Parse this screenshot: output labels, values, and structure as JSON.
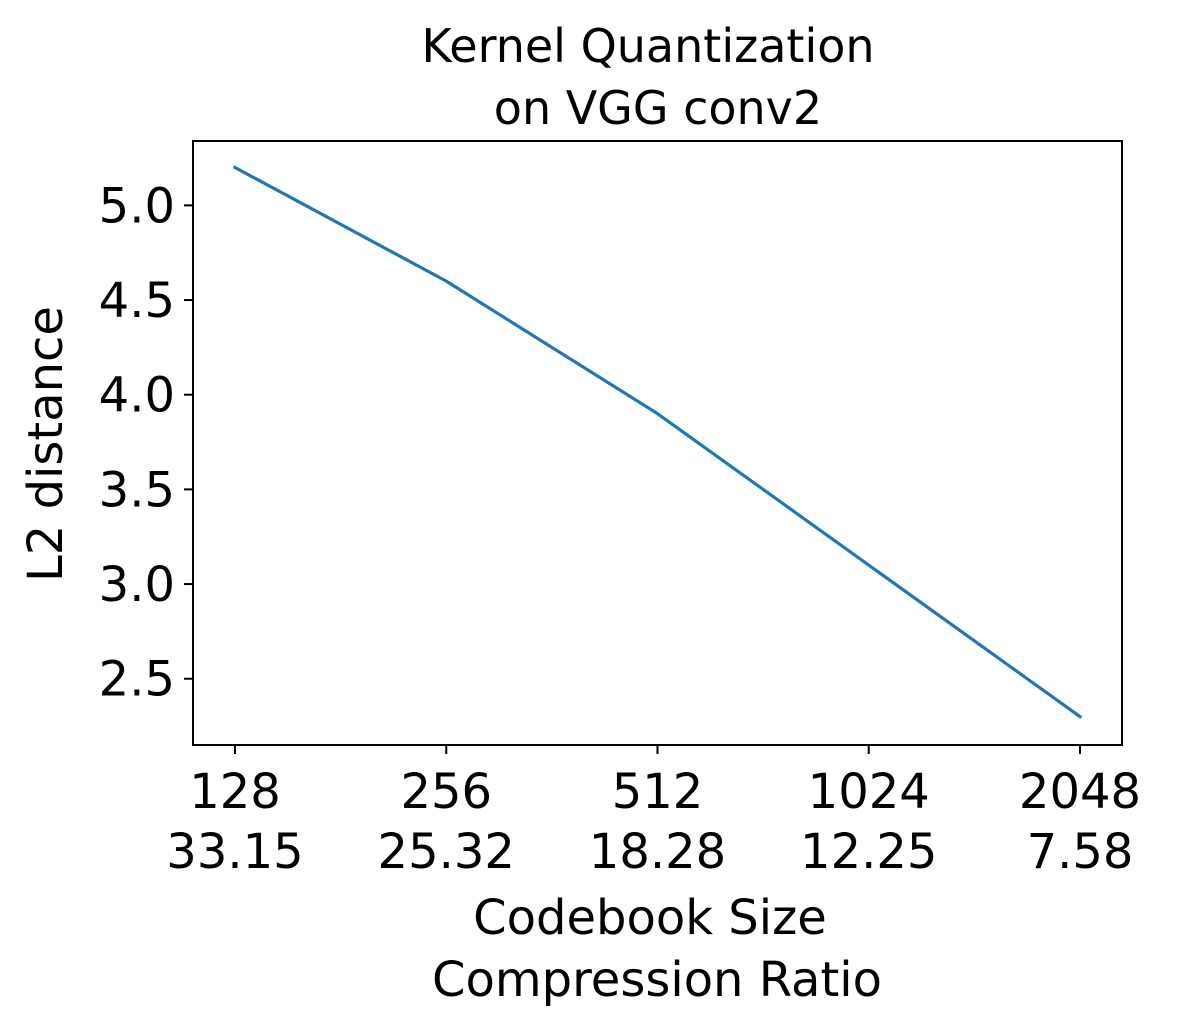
{
  "chart_data": {
    "type": "line",
    "title_lines": [
      "Kernel Quantization",
      "on VGG conv2"
    ],
    "xlabel_lines": [
      "Codebook Size",
      "Compression Ratio"
    ],
    "ylabel": "L2 distance",
    "x_tick_labels": [
      {
        "top": "128",
        "bottom": "33.15"
      },
      {
        "top": "256",
        "bottom": "25.32"
      },
      {
        "top": "512",
        "bottom": "18.28"
      },
      {
        "top": "1024",
        "bottom": "12.25"
      },
      {
        "top": "2048",
        "bottom": "7.58"
      }
    ],
    "y_ticks": [
      2.5,
      3.0,
      3.5,
      4.0,
      4.5,
      5.0
    ],
    "y_tick_labels": [
      "2.5",
      "3.0",
      "3.5",
      "4.0",
      "4.5",
      "5.0"
    ],
    "ylim": [
      2.15,
      5.34
    ],
    "grid": false,
    "series": [
      {
        "color": "#1f77b4",
        "x": [
          128,
          256,
          512,
          1024,
          2048
        ],
        "y": [
          5.2,
          4.6,
          3.9,
          3.1,
          2.3
        ]
      }
    ]
  }
}
